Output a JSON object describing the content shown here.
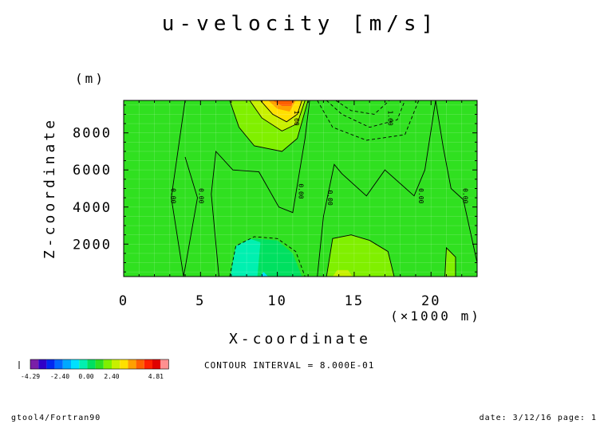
{
  "chart_data": {
    "type": "heatmap",
    "title": "u-velocity [m/s]",
    "xlabel": "X-coordinate",
    "ylabel": "Z-coordinate",
    "x_unit": "(×1000 m)",
    "y_unit": "(m)",
    "xlim": [
      0,
      23
    ],
    "ylim": [
      250,
      9750
    ],
    "x_ticks": [
      0,
      5,
      10,
      15,
      20
    ],
    "y_ticks": [
      2000,
      4000,
      6000,
      8000
    ],
    "x_tick_labels": [
      "0",
      "5",
      "10",
      "15",
      "20"
    ],
    "y_tick_labels": [
      "2000",
      "4000",
      "6000",
      "8000"
    ],
    "contour_interval": "CONTOUR INTERVAL = 8.000E-01",
    "contour_labels": [
      {
        "text": "0.00",
        "x": 3.1,
        "y": 4600
      },
      {
        "text": "0.00",
        "x": 4.9,
        "y": 4600
      },
      {
        "text": "0.00",
        "x": 11.4,
        "y": 4850
      },
      {
        "text": "0.00",
        "x": 13.3,
        "y": 4500
      },
      {
        "text": "0.00",
        "x": 19.2,
        "y": 4600
      },
      {
        "text": "0.00",
        "x": 22.1,
        "y": 4600
      },
      {
        "text": "1.60",
        "x": 11.1,
        "y": 8800
      },
      {
        "text": "1.60",
        "x": 17.2,
        "y": 8800
      }
    ],
    "regions": [
      {
        "level": -0.4,
        "points": [
          [
            6.8,
            250
          ],
          [
            7.2,
            1800
          ],
          [
            8.5,
            2300
          ],
          [
            10,
            2200
          ],
          [
            11,
            1500
          ],
          [
            11.6,
            250
          ]
        ]
      },
      {
        "level": -1.2,
        "points": [
          [
            8.7,
            250
          ],
          [
            8.9,
            2100
          ],
          [
            7.5,
            2500
          ],
          [
            7.2,
            1800
          ],
          [
            7.0,
            250
          ]
        ]
      },
      {
        "level": -2.0,
        "points": [
          [
            8.9,
            250
          ],
          [
            9.1,
            500
          ],
          [
            9.4,
            250
          ]
        ]
      },
      {
        "level": -0.4,
        "points": [
          [
            12.6,
            9750
          ],
          [
            13.6,
            8300
          ],
          [
            15.8,
            7600
          ],
          [
            18.3,
            7900
          ],
          [
            19.2,
            9750
          ]
        ]
      },
      {
        "level": -1.2,
        "points": [
          [
            13.2,
            9750
          ],
          [
            14.2,
            9000
          ],
          [
            16.0,
            8300
          ],
          [
            17.8,
            8700
          ],
          [
            18.3,
            9750
          ]
        ]
      },
      {
        "level": -2.0,
        "points": [
          [
            13.8,
            9750
          ],
          [
            14.8,
            9200
          ],
          [
            16.3,
            9000
          ],
          [
            17.3,
            9750
          ]
        ]
      },
      {
        "level": -2.8,
        "points": [
          [
            14.2,
            9750
          ],
          [
            15.2,
            9400
          ],
          [
            16.0,
            9450
          ],
          [
            16.6,
            9750
          ]
        ]
      },
      {
        "level": -3.6,
        "points": [
          [
            14.5,
            9750
          ],
          [
            15.2,
            9550
          ],
          [
            16.0,
            9600
          ],
          [
            16.2,
            9750
          ]
        ]
      },
      {
        "level": 0.4,
        "points": [
          [
            4.0,
            9750
          ],
          [
            3.1,
            4500
          ],
          [
            4.0,
            6700
          ],
          [
            4.8,
            4500
          ],
          [
            3.9,
            250
          ],
          [
            6.9,
            250
          ],
          [
            7.3,
            1900
          ],
          [
            8.5,
            2400
          ],
          [
            10,
            2300
          ],
          [
            11.2,
            1600
          ],
          [
            11.8,
            250
          ],
          [
            12.6,
            250
          ],
          [
            13.0,
            3500
          ],
          [
            13.7,
            6300
          ],
          [
            14.2,
            5800
          ],
          [
            15.8,
            4600
          ],
          [
            17.0,
            6000
          ],
          [
            18.9,
            4600
          ],
          [
            19.6,
            6000
          ],
          [
            20.3,
            9750
          ]
        ]
      },
      {
        "level": 0.4,
        "points": [
          [
            20.3,
            9750
          ],
          [
            20.8,
            7200
          ],
          [
            21.3,
            5000
          ],
          [
            22.1,
            4400
          ],
          [
            22.2,
            9750
          ]
        ]
      },
      {
        "level": 1.2,
        "points": [
          [
            6.9,
            9750
          ],
          [
            7.5,
            8300
          ],
          [
            8.5,
            7300
          ],
          [
            10.3,
            7000
          ],
          [
            11.3,
            7700
          ],
          [
            12.0,
            9750
          ]
        ]
      },
      {
        "level": 2.0,
        "points": [
          [
            8.2,
            9750
          ],
          [
            9.0,
            8800
          ],
          [
            10.3,
            8100
          ],
          [
            11.3,
            8500
          ],
          [
            11.8,
            9750
          ]
        ]
      },
      {
        "level": 2.8,
        "points": [
          [
            8.9,
            9750
          ],
          [
            9.7,
            9000
          ],
          [
            10.6,
            8600
          ],
          [
            11.3,
            9000
          ],
          [
            11.6,
            9750
          ]
        ]
      },
      {
        "level": 3.6,
        "points": [
          [
            9.4,
            9750
          ],
          [
            10.0,
            9300
          ],
          [
            10.8,
            9150
          ],
          [
            11.2,
            9750
          ]
        ]
      },
      {
        "level": 4.4,
        "points": [
          [
            9.7,
            9750
          ],
          [
            10.3,
            9450
          ],
          [
            10.9,
            9450
          ],
          [
            11.1,
            9750
          ]
        ]
      },
      {
        "level": 1.2,
        "points": [
          [
            13.2,
            250
          ],
          [
            13.6,
            2300
          ],
          [
            14.8,
            2500
          ],
          [
            16.0,
            2200
          ],
          [
            17.2,
            1600
          ],
          [
            17.6,
            250
          ]
        ]
      },
      {
        "level": 2.0,
        "points": [
          [
            13.6,
            250
          ],
          [
            13.9,
            600
          ],
          [
            14.6,
            600
          ],
          [
            14.9,
            250
          ]
        ]
      },
      {
        "level": 1.2,
        "points": [
          [
            20.9,
            250
          ],
          [
            21.0,
            1800
          ],
          [
            21.6,
            1300
          ],
          [
            21.6,
            250
          ]
        ]
      }
    ],
    "contour_lines": [
      {
        "style": "solid",
        "points": [
          [
            4.0,
            9750
          ],
          [
            3.1,
            4500
          ],
          [
            3.9,
            250
          ]
        ]
      },
      {
        "style": "solid",
        "points": [
          [
            4.8,
            4500
          ],
          [
            4.0,
            6700
          ]
        ]
      },
      {
        "style": "solid",
        "points": [
          [
            4.8,
            4500
          ],
          [
            3.9,
            250
          ]
        ]
      },
      {
        "style": "solid",
        "points": [
          [
            6.2,
            250
          ],
          [
            5.7,
            4700
          ],
          [
            6.0,
            7000
          ],
          [
            7.1,
            6000
          ],
          [
            8.8,
            5900
          ],
          [
            10.1,
            4000
          ],
          [
            11.0,
            3700
          ],
          [
            11.8,
            7700
          ],
          [
            12.1,
            9750
          ]
        ]
      },
      {
        "style": "solid",
        "points": [
          [
            12.6,
            250
          ],
          [
            13.0,
            3500
          ],
          [
            13.7,
            6300
          ],
          [
            14.2,
            5800
          ],
          [
            15.8,
            4600
          ],
          [
            17.0,
            6000
          ],
          [
            18.9,
            4600
          ],
          [
            19.6,
            6000
          ],
          [
            20.3,
            9750
          ]
        ]
      },
      {
        "style": "solid",
        "points": [
          [
            20.3,
            9750
          ],
          [
            20.8,
            7200
          ],
          [
            21.3,
            5000
          ],
          [
            22.1,
            4400
          ],
          [
            23.0,
            1000
          ]
        ]
      },
      {
        "style": "solid",
        "points": [
          [
            6.9,
            9750
          ],
          [
            7.5,
            8300
          ],
          [
            8.5,
            7300
          ],
          [
            10.3,
            7000
          ],
          [
            11.3,
            7700
          ],
          [
            12.0,
            9750
          ]
        ]
      },
      {
        "style": "solid",
        "points": [
          [
            8.2,
            9750
          ],
          [
            9.0,
            8800
          ],
          [
            10.3,
            8100
          ],
          [
            11.3,
            8500
          ],
          [
            11.8,
            9750
          ]
        ]
      },
      {
        "style": "solid",
        "points": [
          [
            8.9,
            9750
          ],
          [
            9.7,
            9000
          ],
          [
            10.6,
            8600
          ],
          [
            11.3,
            9000
          ],
          [
            11.6,
            9750
          ]
        ]
      },
      {
        "style": "solid",
        "points": [
          [
            13.2,
            250
          ],
          [
            13.6,
            2300
          ],
          [
            14.8,
            2500
          ],
          [
            16.0,
            2200
          ],
          [
            17.2,
            1600
          ],
          [
            17.6,
            250
          ]
        ]
      },
      {
        "style": "solid",
        "points": [
          [
            20.9,
            250
          ],
          [
            21.0,
            1800
          ],
          [
            21.6,
            1300
          ],
          [
            21.6,
            250
          ]
        ]
      },
      {
        "style": "dashed",
        "points": [
          [
            6.9,
            250
          ],
          [
            7.3,
            1900
          ],
          [
            8.5,
            2400
          ],
          [
            10,
            2300
          ],
          [
            11.2,
            1600
          ],
          [
            11.8,
            250
          ]
        ]
      },
      {
        "style": "dashed",
        "points": [
          [
            12.6,
            9750
          ],
          [
            13.6,
            8300
          ],
          [
            15.8,
            7600
          ],
          [
            18.3,
            7900
          ],
          [
            19.2,
            9750
          ]
        ]
      },
      {
        "style": "dashed",
        "points": [
          [
            13.2,
            9750
          ],
          [
            14.2,
            9000
          ],
          [
            16.0,
            8300
          ],
          [
            17.8,
            8700
          ],
          [
            18.3,
            9750
          ]
        ]
      },
      {
        "style": "dashed",
        "points": [
          [
            13.8,
            9750
          ],
          [
            14.8,
            9200
          ],
          [
            16.3,
            9000
          ],
          [
            17.3,
            9750
          ]
        ]
      }
    ],
    "colorbar": {
      "colors": [
        "#7a1fa8",
        "#3000c8",
        "#0028f0",
        "#0068ff",
        "#00a8ff",
        "#00e0ff",
        "#00f0b0",
        "#00e060",
        "#30e020",
        "#80f000",
        "#c8f000",
        "#ffe000",
        "#ffa000",
        "#ff6000",
        "#ff2000",
        "#e00000",
        "#ff9090"
      ],
      "levels": [
        -3.6,
        -2.8,
        -2.0,
        -1.2,
        -0.4,
        0.4,
        1.2,
        2.0,
        2.8,
        3.6,
        4.4
      ],
      "tick_labels": [
        "-4.29",
        "-2.40",
        "0.00",
        "2.40",
        "4.81"
      ]
    }
  },
  "footer": {
    "left": "gtool4/Fortran90",
    "right": "date: 3/12/16 page: 1"
  }
}
